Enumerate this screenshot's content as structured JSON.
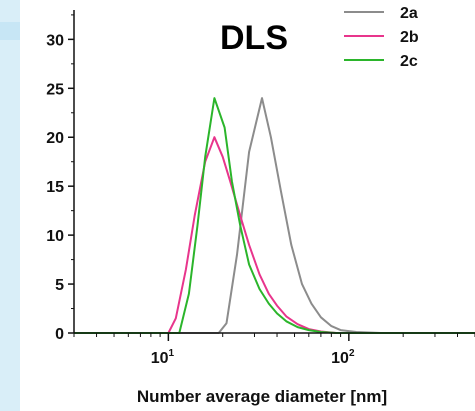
{
  "chart_data": {
    "type": "line",
    "title": "DLS",
    "xlabel": "Number average diameter [nm]",
    "ylabel": "",
    "xscale": "log",
    "xlim": [
      3,
      500
    ],
    "ylim": [
      0,
      33
    ],
    "yticks": [
      0,
      5,
      10,
      15,
      20,
      25,
      30
    ],
    "xticks": [
      {
        "value": 10,
        "base": "10",
        "exp": "1"
      },
      {
        "value": 100,
        "base": "10",
        "exp": "2"
      }
    ],
    "legend_position": "top-right",
    "grid": false,
    "series": [
      {
        "name": "2a",
        "color": "#8c8c8c",
        "x": [
          3,
          15,
          19,
          21,
          24,
          28,
          33,
          37,
          42,
          48,
          55,
          62,
          70,
          80,
          90,
          110,
          150,
          200,
          500
        ],
        "y": [
          0,
          0,
          0,
          1,
          8,
          18.5,
          24,
          20,
          14.5,
          9,
          5,
          3,
          1.6,
          0.7,
          0.3,
          0.1,
          0,
          0,
          0
        ]
      },
      {
        "name": "2b",
        "color": "#e8358c",
        "x": [
          3,
          10,
          11,
          12.5,
          14,
          16,
          18,
          20,
          22,
          25,
          28,
          32,
          36,
          40,
          45,
          52,
          60,
          70,
          85,
          110,
          160,
          500
        ],
        "y": [
          0,
          0,
          1.5,
          6.5,
          12,
          17.5,
          20,
          18,
          15.5,
          12,
          9,
          6,
          4,
          2.8,
          1.7,
          0.9,
          0.4,
          0.15,
          0,
          0,
          0,
          0
        ]
      },
      {
        "name": "2c",
        "color": "#2bb52b",
        "x": [
          3,
          11.5,
          13,
          14.5,
          16,
          18,
          20.5,
          22.5,
          25,
          28,
          32,
          36,
          40,
          45,
          52,
          60,
          70,
          85,
          110,
          160,
          500
        ],
        "y": [
          0,
          0,
          4,
          11,
          18,
          24,
          21,
          15.5,
          11,
          7,
          4.5,
          3,
          2,
          1.2,
          0.6,
          0.3,
          0.1,
          0,
          0,
          0,
          0
        ]
      }
    ]
  }
}
